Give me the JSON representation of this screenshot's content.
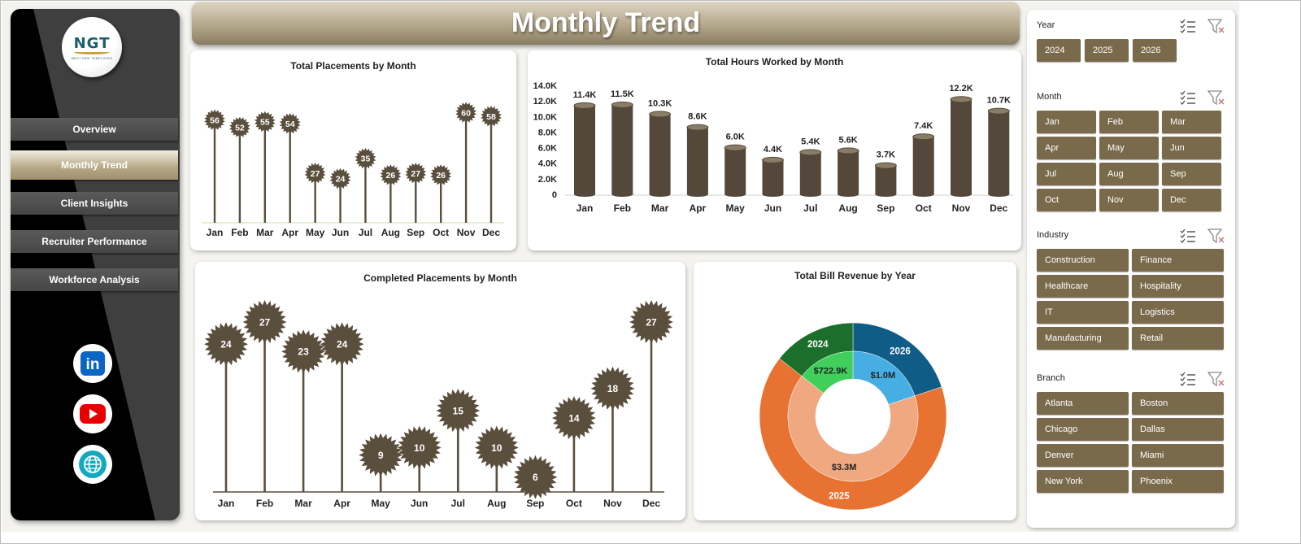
{
  "header": {
    "title": "Monthly Trend"
  },
  "sidebar": {
    "logo": {
      "text": "NGT",
      "subtext": "NEXT GEN TEMPLATES"
    },
    "nav": [
      {
        "label": "Overview",
        "active": false
      },
      {
        "label": "Monthly Trend",
        "active": true
      },
      {
        "label": "Client Insights",
        "active": false
      },
      {
        "label": "Recruiter Performance",
        "active": false
      },
      {
        "label": "Workforce Analysis",
        "active": false
      }
    ],
    "social": [
      {
        "icon": "linkedin-icon",
        "text": "in",
        "color": "#0a66c2"
      },
      {
        "icon": "youtube-icon",
        "color": "#e60000"
      },
      {
        "icon": "globe-icon",
        "color": "#12a8c0"
      }
    ]
  },
  "chart_data": [
    {
      "type": "lollipop",
      "title": "Total Placements by Month",
      "categories": [
        "Jan",
        "Feb",
        "Mar",
        "Apr",
        "May",
        "Jun",
        "Jul",
        "Aug",
        "Sep",
        "Oct",
        "Nov",
        "Dec"
      ],
      "values": [
        56,
        52,
        55,
        54,
        27,
        24,
        35,
        26,
        27,
        26,
        60,
        58
      ],
      "color": "#5a4e3d"
    },
    {
      "type": "bar",
      "title": "Total Hours Worked by Month",
      "categories": [
        "Jan",
        "Feb",
        "Mar",
        "Apr",
        "May",
        "Jun",
        "Jul",
        "Aug",
        "Sep",
        "Oct",
        "Nov",
        "Dec"
      ],
      "values": [
        11400,
        11500,
        10300,
        8600,
        6000,
        4400,
        5400,
        5600,
        3700,
        7400,
        12200,
        10700
      ],
      "labels": [
        "11.4K",
        "11.5K",
        "10.3K",
        "8.6K",
        "6.0K",
        "4.4K",
        "5.4K",
        "5.6K",
        "3.7K",
        "7.4K",
        "12.2K",
        "10.7K"
      ],
      "yticks": [
        "0",
        "2.0K",
        "4.0K",
        "6.0K",
        "8.0K",
        "10.0K",
        "12.0K",
        "14.0K"
      ],
      "ylim": [
        0,
        14000
      ],
      "color": "#54483a"
    },
    {
      "type": "lollipop",
      "title": "Completed Placements by Month",
      "categories": [
        "Jan",
        "Feb",
        "Mar",
        "Apr",
        "May",
        "Jun",
        "Jul",
        "Aug",
        "Sep",
        "Oct",
        "Nov",
        "Dec"
      ],
      "values": [
        24,
        27,
        23,
        24,
        9,
        10,
        15,
        10,
        6,
        14,
        18,
        27
      ],
      "color": "#5a4e3d"
    },
    {
      "type": "pie",
      "title": "Total Bill Revenue by Year",
      "outer": [
        {
          "label": "2024",
          "share": 0.1439,
          "color": "#1c6f2a"
        },
        {
          "label": "2025",
          "share": 0.657,
          "color": "#e87231"
        },
        {
          "label": "2026",
          "share": 0.1991,
          "color": "#0f5c86"
        }
      ],
      "inner": [
        {
          "label": "$722.9K",
          "share": 0.1439,
          "color": "#3fcf5a"
        },
        {
          "label": "$3.3M",
          "share": 0.657,
          "color": "#f0a880"
        },
        {
          "label": "$1.0M",
          "share": 0.1991,
          "color": "#46aee3"
        }
      ]
    }
  ],
  "slicers": [
    {
      "title": "Year",
      "items": [
        "2024",
        "2025",
        "2026"
      ]
    },
    {
      "title": "Month",
      "items": [
        "Jan",
        "Feb",
        "Mar",
        "Apr",
        "May",
        "Jun",
        "Jul",
        "Aug",
        "Sep",
        "Oct",
        "Nov",
        "Dec"
      ]
    },
    {
      "title": "Industry",
      "items": [
        "Construction",
        "Finance",
        "Healthcare",
        "Hospitality",
        "IT",
        "Logistics",
        "Manufacturing",
        "Retail"
      ]
    },
    {
      "title": "Branch",
      "items": [
        "Atlanta",
        "Boston",
        "Chicago",
        "Dallas",
        "Denver",
        "Miami",
        "New York",
        "Phoenix"
      ]
    }
  ]
}
